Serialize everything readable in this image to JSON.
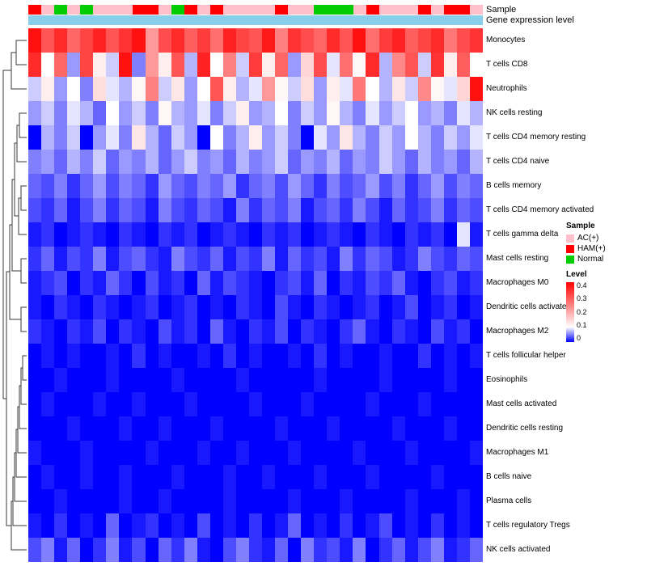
{
  "annotation_labels": {
    "sample": "Sample",
    "gene_expression": "Gene expression level"
  },
  "legend": {
    "sample_title": "Sample",
    "sample_items": [
      {
        "label": "AC(+)",
        "color": "#FFC0CB"
      },
      {
        "label": "HAM(+)",
        "color": "#FF0000"
      },
      {
        "label": "Normal",
        "color": "#00CC00"
      }
    ],
    "level_title": "Level",
    "level_ticks": [
      "0.4",
      "0.3",
      "0.2",
      "0.1",
      "0"
    ]
  },
  "chart_data": {
    "type": "heatmap",
    "title": "",
    "n_columns": 35,
    "rows": [
      "Monocytes",
      "T cells CD8",
      "Neutrophils",
      "NK cells resting",
      "T cells CD4 memory resting",
      "T cells CD4 naive",
      "B cells memory",
      "T cells CD4 memory activated",
      "T cells gamma delta",
      "Mast cells resting",
      "Macrophages M0",
      "Dendritic cells activated",
      "Macrophages M2",
      "T cells follicular helper",
      "Eosinophils",
      "Mast cells activated",
      "Dendritic cells resting",
      "Macrophages M1",
      "B cells naive",
      "Plasma cells",
      "T cells regulatory Tregs",
      "NK cells activated"
    ],
    "values": [
      [
        0.38,
        0.3,
        0.35,
        0.28,
        0.32,
        0.36,
        0.3,
        0.34,
        0.38,
        0.22,
        0.31,
        0.35,
        0.29,
        0.33,
        0.27,
        0.36,
        0.32,
        0.3,
        0.37,
        0.25,
        0.34,
        0.31,
        0.28,
        0.35,
        0.3,
        0.38,
        0.27,
        0.33,
        0.36,
        0.29,
        0.32,
        0.35,
        0.26,
        0.31,
        0.34
      ],
      [
        0.35,
        0.1,
        0.28,
        0.06,
        0.32,
        0.12,
        0.08,
        0.38,
        0.05,
        0.22,
        0.12,
        0.3,
        0.07,
        0.36,
        0.1,
        0.25,
        0.08,
        0.33,
        0.12,
        0.28,
        0.06,
        0.15,
        0.31,
        0.09,
        0.27,
        0.11,
        0.35,
        0.07,
        0.24,
        0.3,
        0.08,
        0.34,
        0.12,
        0.29,
        0.1
      ],
      [
        0.08,
        0.12,
        0.06,
        0.1,
        0.05,
        0.14,
        0.09,
        0.07,
        0.11,
        0.25,
        0.08,
        0.13,
        0.06,
        0.1,
        0.3,
        0.12,
        0.07,
        0.09,
        0.22,
        0.11,
        0.08,
        0.14,
        0.06,
        0.12,
        0.09,
        0.26,
        0.1,
        0.07,
        0.13,
        0.08,
        0.24,
        0.11,
        0.09,
        0.15,
        0.38
      ],
      [
        0.06,
        0.08,
        0.05,
        0.09,
        0.07,
        0.04,
        0.1,
        0.06,
        0.08,
        0.05,
        0.11,
        0.07,
        0.06,
        0.09,
        0.05,
        0.08,
        0.12,
        0.06,
        0.07,
        0.1,
        0.05,
        0.08,
        0.06,
        0.11,
        0.07,
        0.05,
        0.09,
        0.06,
        0.08,
        0.1,
        0.06,
        0.07,
        0.05,
        0.09,
        0.07
      ],
      [
        0.0,
        0.07,
        0.05,
        0.08,
        0.0,
        0.06,
        0.09,
        0.05,
        0.13,
        0.07,
        0.04,
        0.08,
        0.06,
        0.0,
        0.1,
        0.05,
        0.07,
        0.12,
        0.06,
        0.08,
        0.05,
        0.0,
        0.09,
        0.06,
        0.13,
        0.07,
        0.05,
        0.08,
        0.06,
        0.1,
        0.07,
        0.05,
        0.08,
        0.06,
        0.09
      ],
      [
        0.05,
        0.06,
        0.04,
        0.07,
        0.05,
        0.08,
        0.04,
        0.06,
        0.05,
        0.07,
        0.04,
        0.06,
        0.08,
        0.05,
        0.06,
        0.04,
        0.07,
        0.05,
        0.06,
        0.08,
        0.04,
        0.06,
        0.05,
        0.07,
        0.04,
        0.06,
        0.05,
        0.08,
        0.06,
        0.04,
        0.07,
        0.05,
        0.06,
        0.04,
        0.07
      ],
      [
        0.04,
        0.03,
        0.05,
        0.02,
        0.04,
        0.06,
        0.03,
        0.05,
        0.04,
        0.02,
        0.06,
        0.04,
        0.03,
        0.05,
        0.04,
        0.06,
        0.02,
        0.04,
        0.05,
        0.03,
        0.06,
        0.04,
        0.02,
        0.05,
        0.03,
        0.04,
        0.06,
        0.03,
        0.05,
        0.02,
        0.04,
        0.06,
        0.03,
        0.05,
        0.04
      ],
      [
        0.03,
        0.02,
        0.04,
        0.01,
        0.03,
        0.05,
        0.02,
        0.04,
        0.03,
        0.01,
        0.05,
        0.03,
        0.02,
        0.04,
        0.03,
        0.01,
        0.05,
        0.02,
        0.04,
        0.03,
        0.05,
        0.01,
        0.03,
        0.04,
        0.02,
        0.05,
        0.03,
        0.01,
        0.04,
        0.02,
        0.03,
        0.05,
        0.02,
        0.04,
        0.03
      ],
      [
        0.01,
        0.02,
        0.0,
        0.01,
        0.02,
        0.01,
        0.0,
        0.02,
        0.01,
        0.0,
        0.02,
        0.01,
        0.02,
        0.0,
        0.01,
        0.02,
        0.01,
        0.0,
        0.02,
        0.01,
        0.02,
        0.0,
        0.01,
        0.02,
        0.01,
        0.0,
        0.02,
        0.01,
        0.0,
        0.02,
        0.01,
        0.02,
        0.0,
        0.09,
        0.01
      ],
      [
        0.02,
        0.04,
        0.01,
        0.03,
        0.02,
        0.05,
        0.01,
        0.03,
        0.04,
        0.02,
        0.01,
        0.05,
        0.03,
        0.02,
        0.04,
        0.01,
        0.03,
        0.02,
        0.05,
        0.01,
        0.04,
        0.02,
        0.03,
        0.01,
        0.05,
        0.02,
        0.04,
        0.03,
        0.01,
        0.02,
        0.05,
        0.03,
        0.02,
        0.04,
        0.03
      ],
      [
        0.01,
        0.02,
        0.03,
        0.0,
        0.02,
        0.01,
        0.04,
        0.02,
        0.0,
        0.03,
        0.01,
        0.02,
        0.0,
        0.04,
        0.01,
        0.03,
        0.02,
        0.01,
        0.0,
        0.02,
        0.03,
        0.01,
        0.04,
        0.0,
        0.02,
        0.01,
        0.03,
        0.02,
        0.04,
        0.01,
        0.0,
        0.02,
        0.03,
        0.01,
        0.02
      ],
      [
        0.01,
        0.0,
        0.02,
        0.01,
        0.0,
        0.02,
        0.01,
        0.0,
        0.01,
        0.02,
        0.0,
        0.01,
        0.02,
        0.0,
        0.01,
        0.0,
        0.02,
        0.01,
        0.0,
        0.03,
        0.01,
        0.0,
        0.02,
        0.01,
        0.0,
        0.01,
        0.02,
        0.0,
        0.01,
        0.03,
        0.0,
        0.01,
        0.02,
        0.0,
        0.01
      ],
      [
        0.02,
        0.01,
        0.0,
        0.02,
        0.01,
        0.03,
        0.0,
        0.02,
        0.01,
        0.0,
        0.03,
        0.01,
        0.02,
        0.0,
        0.04,
        0.01,
        0.0,
        0.02,
        0.01,
        0.03,
        0.0,
        0.02,
        0.01,
        0.0,
        0.02,
        0.04,
        0.01,
        0.0,
        0.02,
        0.01,
        0.0,
        0.03,
        0.01,
        0.02,
        0.0
      ],
      [
        0.0,
        0.01,
        0.0,
        0.01,
        0.0,
        0.0,
        0.01,
        0.0,
        0.02,
        0.0,
        0.01,
        0.0,
        0.0,
        0.01,
        0.0,
        0.02,
        0.0,
        0.01,
        0.0,
        0.0,
        0.01,
        0.0,
        0.02,
        0.0,
        0.01,
        0.0,
        0.0,
        0.01,
        0.0,
        0.0,
        0.02,
        0.0,
        0.01,
        0.0,
        0.01
      ],
      [
        0.0,
        0.0,
        0.01,
        0.0,
        0.0,
        0.0,
        0.01,
        0.0,
        0.0,
        0.0,
        0.0,
        0.01,
        0.0,
        0.0,
        0.0,
        0.0,
        0.01,
        0.0,
        0.0,
        0.0,
        0.0,
        0.0,
        0.01,
        0.0,
        0.0,
        0.0,
        0.0,
        0.01,
        0.0,
        0.0,
        0.0,
        0.0,
        0.01,
        0.0,
        0.0
      ],
      [
        0.0,
        0.01,
        0.0,
        0.0,
        0.0,
        0.01,
        0.0,
        0.0,
        0.01,
        0.0,
        0.0,
        0.0,
        0.01,
        0.0,
        0.0,
        0.0,
        0.0,
        0.01,
        0.0,
        0.0,
        0.0,
        0.01,
        0.0,
        0.0,
        0.0,
        0.0,
        0.01,
        0.0,
        0.0,
        0.0,
        0.01,
        0.0,
        0.0,
        0.0,
        0.0
      ],
      [
        0.0,
        0.0,
        0.0,
        0.01,
        0.0,
        0.0,
        0.0,
        0.01,
        0.0,
        0.0,
        0.01,
        0.0,
        0.0,
        0.0,
        0.01,
        0.0,
        0.0,
        0.0,
        0.0,
        0.01,
        0.0,
        0.0,
        0.0,
        0.01,
        0.0,
        0.0,
        0.0,
        0.0,
        0.01,
        0.0,
        0.0,
        0.0,
        0.01,
        0.0,
        0.0
      ],
      [
        0.01,
        0.0,
        0.0,
        0.0,
        0.01,
        0.0,
        0.0,
        0.0,
        0.0,
        0.01,
        0.0,
        0.0,
        0.0,
        0.01,
        0.0,
        0.0,
        0.01,
        0.0,
        0.0,
        0.0,
        0.01,
        0.0,
        0.0,
        0.0,
        0.0,
        0.01,
        0.0,
        0.0,
        0.0,
        0.01,
        0.0,
        0.0,
        0.0,
        0.0,
        0.01
      ],
      [
        0.0,
        0.01,
        0.0,
        0.0,
        0.01,
        0.0,
        0.0,
        0.01,
        0.0,
        0.0,
        0.0,
        0.01,
        0.0,
        0.0,
        0.0,
        0.01,
        0.0,
        0.0,
        0.01,
        0.0,
        0.0,
        0.0,
        0.01,
        0.0,
        0.0,
        0.0,
        0.01,
        0.0,
        0.0,
        0.0,
        0.0,
        0.01,
        0.0,
        0.0,
        0.0
      ],
      [
        0.0,
        0.0,
        0.01,
        0.0,
        0.0,
        0.0,
        0.0,
        0.01,
        0.0,
        0.0,
        0.01,
        0.0,
        0.0,
        0.0,
        0.0,
        0.01,
        0.0,
        0.0,
        0.0,
        0.0,
        0.01,
        0.0,
        0.0,
        0.0,
        0.01,
        0.0,
        0.0,
        0.0,
        0.0,
        0.01,
        0.0,
        0.0,
        0.0,
        0.01,
        0.0
      ],
      [
        0.01,
        0.0,
        0.02,
        0.0,
        0.01,
        0.0,
        0.04,
        0.0,
        0.01,
        0.02,
        0.0,
        0.01,
        0.0,
        0.03,
        0.0,
        0.01,
        0.0,
        0.02,
        0.0,
        0.01,
        0.04,
        0.0,
        0.01,
        0.0,
        0.02,
        0.0,
        0.01,
        0.03,
        0.0,
        0.01,
        0.0,
        0.02,
        0.0,
        0.01,
        0.0
      ],
      [
        0.03,
        0.05,
        0.01,
        0.04,
        0.0,
        0.02,
        0.05,
        0.01,
        0.03,
        0.0,
        0.04,
        0.02,
        0.05,
        0.01,
        0.0,
        0.03,
        0.05,
        0.02,
        0.01,
        0.04,
        0.0,
        0.05,
        0.02,
        0.03,
        0.01,
        0.05,
        0.0,
        0.02,
        0.04,
        0.01,
        0.03,
        0.05,
        0.01,
        0.02,
        0.04
      ]
    ],
    "color_scale": {
      "min": 0,
      "white_point": 0.1,
      "max": 0.4,
      "min_color": "#0000FF",
      "mid_color": "#FFFFFF",
      "max_color": "#FF0000"
    },
    "column_annotations": {
      "sample": {
        "label": "Sample",
        "values": [
          "HAM(+)",
          "AC(+)",
          "Normal",
          "AC(+)",
          "Normal",
          "AC(+)",
          "AC(+)",
          "AC(+)",
          "HAM(+)",
          "HAM(+)",
          "AC(+)",
          "Normal",
          "HAM(+)",
          "AC(+)",
          "HAM(+)",
          "AC(+)",
          "AC(+)",
          "AC(+)",
          "AC(+)",
          "HAM(+)",
          "AC(+)",
          "AC(+)",
          "Normal",
          "Normal",
          "Normal",
          "AC(+)",
          "HAM(+)",
          "AC(+)",
          "AC(+)",
          "AC(+)",
          "HAM(+)",
          "AC(+)",
          "HAM(+)",
          "HAM(+)",
          "AC(+)"
        ],
        "colors": {
          "AC(+)": "#FFC0CB",
          "HAM(+)": "#FF0000",
          "Normal": "#00CC00"
        }
      },
      "gene_expression": {
        "label": "Gene expression level",
        "uniform_color": "#87CEEB"
      }
    },
    "layout": {
      "row_dendrogram": true,
      "column_labels_shown": false,
      "legend_position": "right"
    }
  }
}
